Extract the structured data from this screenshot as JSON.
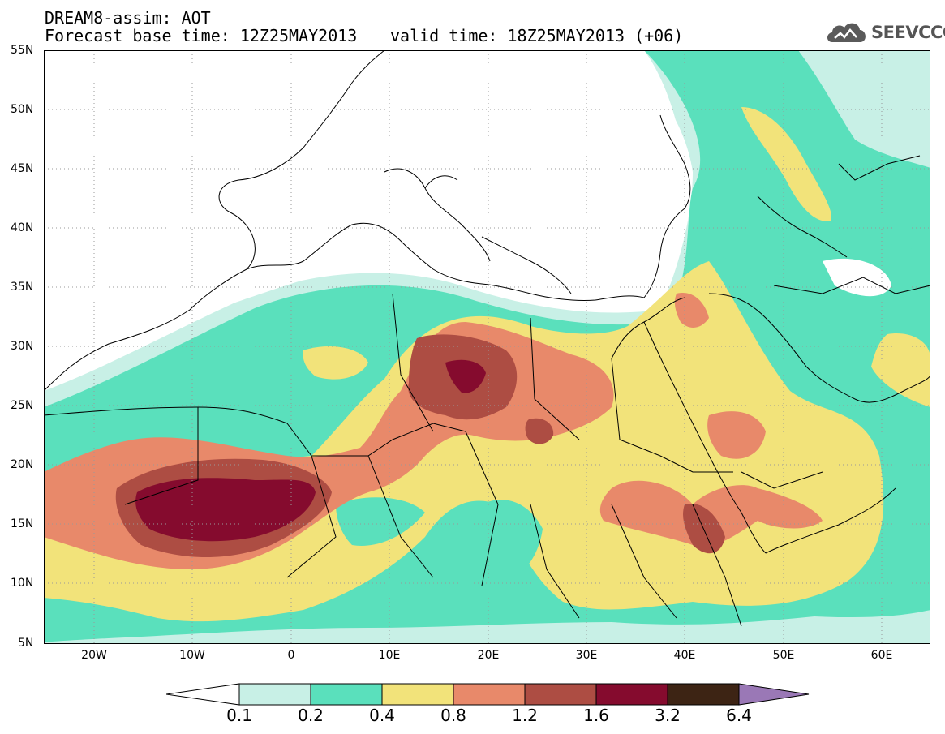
{
  "header": {
    "title": "DREAM8-assim: AOT",
    "base_time": "Forecast base time: 12Z25MAY2013",
    "valid_time": "valid time: 18Z25MAY2013 (+06)"
  },
  "logo": {
    "text": "SEEVCCC",
    "icon": "cloud-icon"
  },
  "axes": {
    "lat_labels": [
      "55N",
      "50N",
      "45N",
      "40N",
      "35N",
      "30N",
      "25N",
      "20N",
      "15N",
      "10N",
      "5N"
    ],
    "lon_labels": [
      "20W",
      "10W",
      "0",
      "10E",
      "20E",
      "30E",
      "40E",
      "50E",
      "60E"
    ],
    "lat_range": [
      5,
      55
    ],
    "lon_range": [
      -25,
      65
    ],
    "grid": "dotted"
  },
  "legend": {
    "thresholds": [
      "0.1",
      "0.2",
      "0.4",
      "0.8",
      "1.2",
      "1.6",
      "3.2",
      "6.4"
    ],
    "colors": [
      "#ffffff",
      "#c8f0e6",
      "#5ae0bc",
      "#f2e37a",
      "#e8896a",
      "#ad4d43",
      "#850b2e",
      "#3d2414",
      "#9a78b6"
    ]
  },
  "field": {
    "name": "AOT",
    "description_levels": [
      "0.1",
      "0.2",
      "0.4",
      "0.8",
      "1.2",
      "1.6"
    ]
  }
}
